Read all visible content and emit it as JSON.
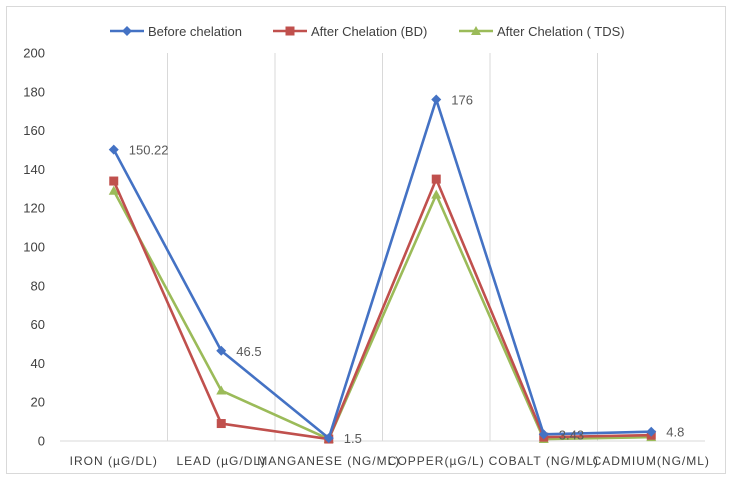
{
  "chart_data": {
    "type": "line",
    "categories": [
      "IRON (µG/DL)",
      "LEAD (µG/DL)",
      "MANGANESE (NG/ML)",
      "COPPER(µG/L)",
      "COBALT (NG/ML)",
      "CADMIUM(NG/ML)"
    ],
    "series": [
      {
        "name": "Before chelation",
        "values": [
          150.22,
          46.5,
          1.5,
          176,
          3.43,
          4.8
        ],
        "color": "#4472c4",
        "marker": "diamond",
        "labels": [
          "150.22",
          "46.5",
          "1.5",
          "176",
          "3.43",
          "4.8"
        ]
      },
      {
        "name": "After Chelation (BD)",
        "values": [
          134,
          9,
          1,
          135,
          2,
          3
        ],
        "color": "#c0504d",
        "marker": "square"
      },
      {
        "name": "After Chelation ( TDS)",
        "values": [
          129,
          26,
          1,
          127,
          1,
          2
        ],
        "color": "#9bbb59",
        "marker": "triangle"
      }
    ],
    "ylim": [
      0,
      200
    ],
    "yticks": [
      0,
      20,
      40,
      60,
      80,
      100,
      120,
      140,
      160,
      180,
      200
    ],
    "grid": "vertical",
    "legend_position": "top"
  }
}
